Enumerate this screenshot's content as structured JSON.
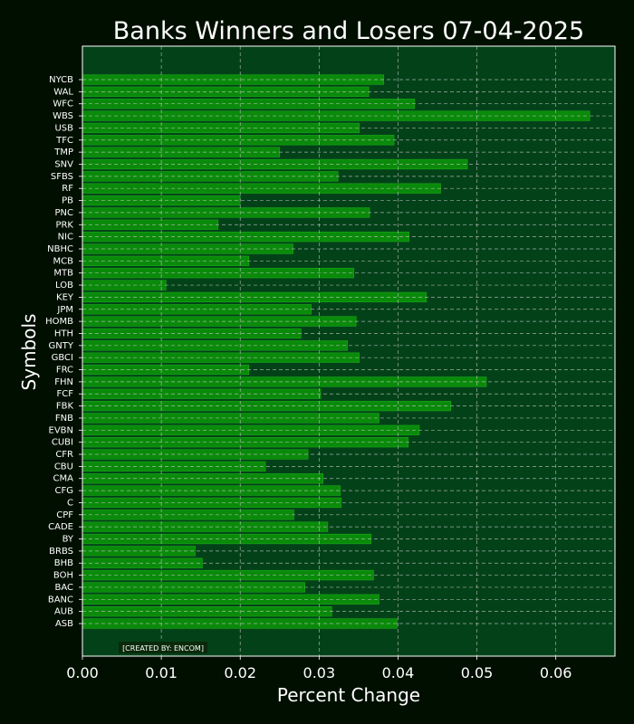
{
  "chart_data": {
    "type": "bar",
    "orientation": "horizontal",
    "title": "Banks Winners and Losers 07-04-2025",
    "xlabel": "Percent Change",
    "ylabel": "Symbols",
    "xlim": [
      0.0,
      0.0675
    ],
    "xticks": [
      "0.00",
      "0.01",
      "0.02",
      "0.03",
      "0.04",
      "0.05",
      "0.06"
    ],
    "grid": true,
    "credit": "[CREATED BY: ENCOM]",
    "colors": {
      "background": "#000f00",
      "plot_background": "#034219",
      "bar": "#0a8a0a",
      "bar_edge": "#1aa81a",
      "grid": "#c8c8c8"
    },
    "categories": [
      "NYCB",
      "WAL",
      "WFC",
      "WBS",
      "USB",
      "TFC",
      "TMP",
      "SNV",
      "SFBS",
      "RF",
      "PB",
      "PNC",
      "PRK",
      "NIC",
      "NBHC",
      "MCB",
      "MTB",
      "LOB",
      "KEY",
      "JPM",
      "HOMB",
      "HTH",
      "GNTY",
      "GBCI",
      "FRC",
      "FHN",
      "FCF",
      "FBK",
      "FNB",
      "EVBN",
      "CUBI",
      "CFR",
      "CBU",
      "CMA",
      "CFG",
      "C",
      "CPF",
      "CADE",
      "BY",
      "BRBS",
      "BHB",
      "BOH",
      "BAC",
      "BANC",
      "AUB",
      "ASB"
    ],
    "values": [
      0.0382,
      0.0363,
      0.0421,
      0.0643,
      0.0351,
      0.0395,
      0.025,
      0.0488,
      0.0324,
      0.0454,
      0.02,
      0.0364,
      0.0172,
      0.0414,
      0.0267,
      0.0211,
      0.0344,
      0.0106,
      0.0436,
      0.029,
      0.0347,
      0.0277,
      0.0336,
      0.0351,
      0.0211,
      0.0512,
      0.0302,
      0.0467,
      0.0376,
      0.0427,
      0.0413,
      0.0286,
      0.0232,
      0.0305,
      0.0327,
      0.0328,
      0.0268,
      0.0311,
      0.0366,
      0.0143,
      0.0152,
      0.0369,
      0.0282,
      0.0376,
      0.0316,
      0.0399
    ]
  }
}
